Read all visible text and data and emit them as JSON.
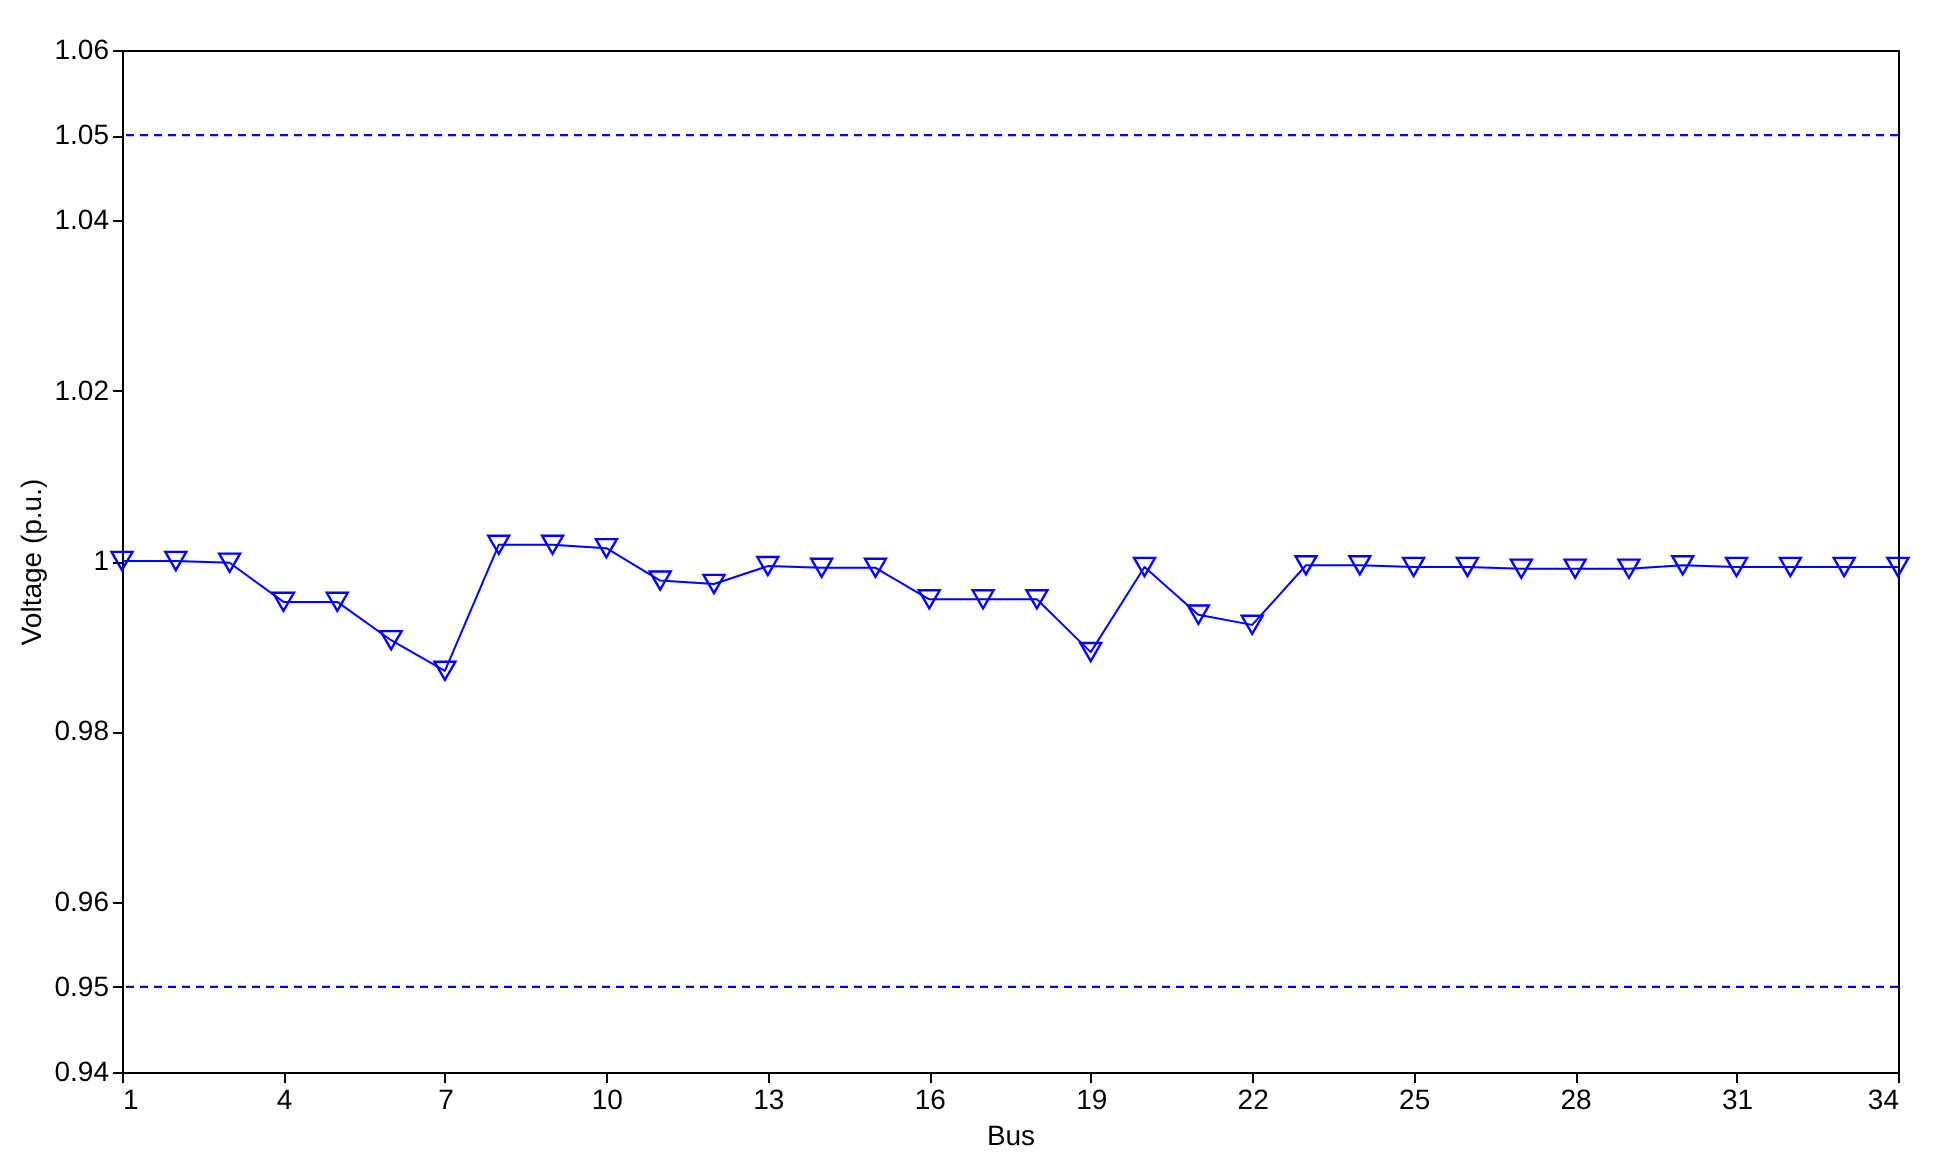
{
  "chart_data": {
    "type": "line",
    "xlabel": "Bus",
    "ylabel": "Voltage (p.u.)",
    "x": [
      1,
      2,
      3,
      4,
      5,
      6,
      7,
      8,
      9,
      10,
      11,
      12,
      13,
      14,
      15,
      16,
      17,
      18,
      19,
      20,
      21,
      22,
      23,
      24,
      25,
      26,
      27,
      28,
      29,
      30,
      31,
      32,
      33,
      34
    ],
    "series": [
      {
        "color": "#0000ff",
        "values": [
          1.0,
          1.0,
          0.9998,
          0.9952,
          0.9952,
          0.9907,
          0.9871,
          1.0019,
          1.0019,
          1.0015,
          0.9977,
          0.9973,
          0.9994,
          0.9992,
          0.9992,
          0.9955,
          0.9955,
          0.9955,
          0.9893,
          0.9993,
          0.9937,
          0.9925,
          0.9995,
          0.9995,
          0.9993,
          0.9993,
          0.9991,
          0.9991,
          0.9991,
          0.9995,
          0.9993,
          0.9993,
          0.9993,
          0.9993
        ]
      }
    ],
    "xlim": [
      1,
      34
    ],
    "xticks": [
      1,
      4,
      7,
      10,
      13,
      16,
      19,
      22,
      25,
      28,
      31,
      34
    ],
    "ylim": [
      0.94,
      1.06
    ],
    "yticks": [
      0.94,
      0.95,
      0.96,
      0.98,
      1,
      1.02,
      1.04,
      1.05,
      1.06
    ],
    "ref_lines": [
      {
        "axis": "y",
        "value": 0.95,
        "color": "#0000ff",
        "line_style": "dashed"
      },
      {
        "axis": "y",
        "value": 1.05,
        "color": "#0000ff",
        "line_style": "dashed"
      }
    ],
    "marker": "triangle",
    "line_style": "solid",
    "grid": false
  }
}
